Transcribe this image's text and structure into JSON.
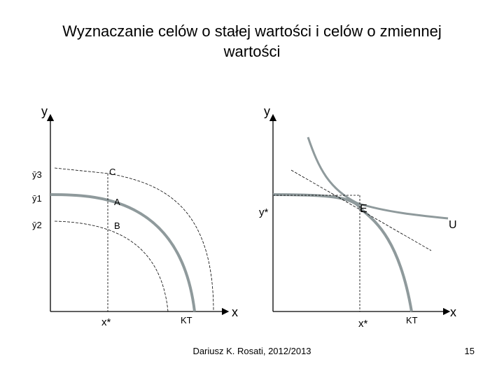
{
  "slide": {
    "title_line1": "Wyznaczanie celów o stałej wartości i celów o zmiennej",
    "title_line2": "wartości",
    "footer": "Dariusz K. Rosati, 2012/2013",
    "page_number": "15"
  },
  "left_diagram": {
    "y_axis_label": "y",
    "x_axis_label": "x",
    "y_ticks": [
      "ȳ3",
      "ȳ1",
      "ȳ2"
    ],
    "point_labels": [
      "C",
      "A",
      "B"
    ],
    "x_star": "x*",
    "curve_label": "KT"
  },
  "right_diagram": {
    "y_axis_label": "y",
    "x_axis_label": "x",
    "y_star": "y*",
    "x_star": "x*",
    "point_label": "E",
    "curve_label": "KT",
    "indifference_label": "U"
  },
  "colors": {
    "main_curve": "#8f9a9c",
    "axis": "#000000",
    "dashed": "#000000"
  }
}
